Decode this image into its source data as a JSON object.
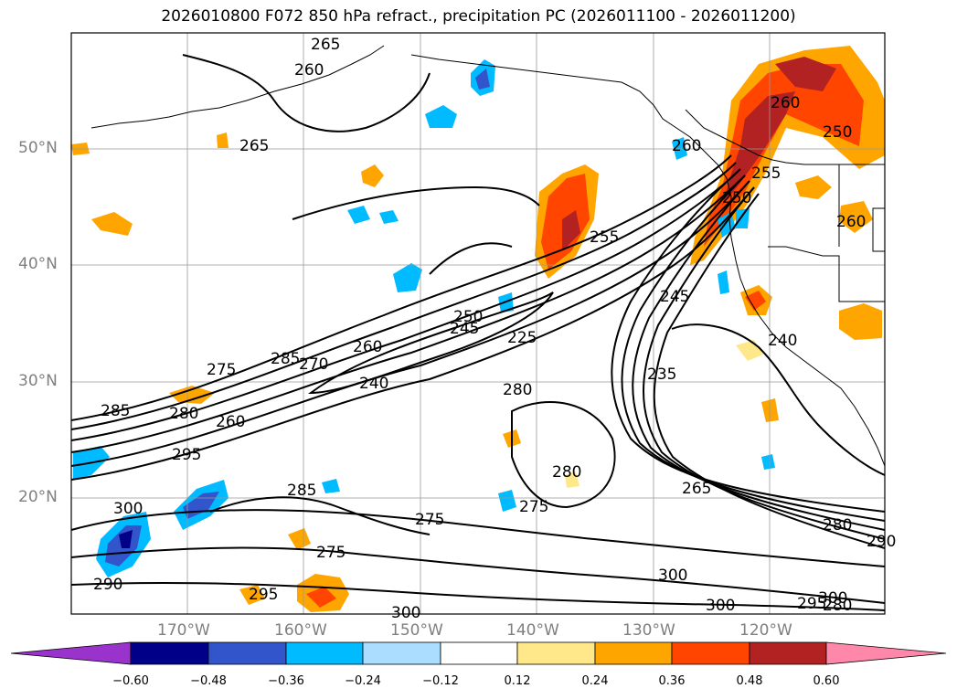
{
  "title": "2026010800 F072 850 hPa refract., precipitation PC (2026011100 - 2026011200)",
  "map": {
    "lon_labels": [
      "170°W",
      "160°W",
      "150°W",
      "140°W",
      "130°W",
      "120°W"
    ],
    "lat_labels": [
      "50°N",
      "40°N",
      "30°N",
      "20°N"
    ],
    "contour_labels": [
      "265",
      "260",
      "265",
      "260",
      "285",
      "275",
      "270",
      "260",
      "250",
      "245",
      "240",
      "225",
      "285",
      "280",
      "260",
      "280",
      "295",
      "285",
      "300",
      "275",
      "275",
      "255",
      "245",
      "235",
      "255",
      "260",
      "240",
      "250",
      "265",
      "260",
      "280",
      "290",
      "300",
      "300",
      "295",
      "300",
      "280",
      "290",
      "280",
      "275",
      "295",
      "300",
      "250"
    ]
  },
  "colorbar": {
    "tick_labels": [
      "−0.60",
      "−0.48",
      "−0.36",
      "−0.24",
      "−0.12",
      "0.12",
      "0.24",
      "0.36",
      "0.48",
      "0.60"
    ],
    "colors": [
      "#9933cc",
      "#000088",
      "#3355cc",
      "#00bbff",
      "#aaddff",
      "#ffffff",
      "#ffe88a",
      "#ffa500",
      "#ff4500",
      "#b22222",
      "#ff88aa"
    ]
  }
}
